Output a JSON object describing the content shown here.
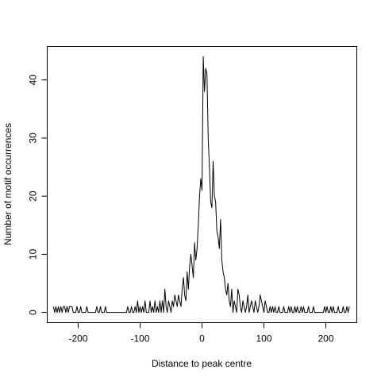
{
  "chart_data": {
    "type": "line",
    "title": "",
    "xlabel": "Distance to peak centre",
    "ylabel": "Number of motif occurrences",
    "xlim": [
      -250,
      250
    ],
    "ylim": [
      -1.76,
      45.76
    ],
    "xticks": [
      -200,
      -100,
      0,
      100,
      200
    ],
    "yticks": [
      0,
      10,
      20,
      30,
      40
    ],
    "xtick_labels": [
      "-200",
      "-100",
      "0",
      "100",
      "200"
    ],
    "ytick_labels": [
      "0",
      "10",
      "20",
      "30",
      "40"
    ],
    "grid": false,
    "legend": "none",
    "series": [
      {
        "name": "",
        "color": "#000000",
        "x": [
          -240,
          -238,
          -236,
          -234,
          -232,
          -230,
          -228,
          -226,
          -224,
          -222,
          -220,
          -218,
          -216,
          -214,
          -212,
          -210,
          -208,
          -206,
          -204,
          -202,
          -200,
          -198,
          -196,
          -194,
          -192,
          -190,
          -188,
          -186,
          -184,
          -182,
          -180,
          -178,
          -176,
          -174,
          -172,
          -170,
          -168,
          -166,
          -164,
          -162,
          -160,
          -158,
          -156,
          -154,
          -152,
          -150,
          -148,
          -146,
          -144,
          -142,
          -140,
          -138,
          -136,
          -134,
          -132,
          -130,
          -128,
          -126,
          -124,
          -122,
          -120,
          -118,
          -116,
          -114,
          -112,
          -110,
          -108,
          -106,
          -104,
          -102,
          -100,
          -98,
          -96,
          -94,
          -92,
          -90,
          -88,
          -86,
          -84,
          -82,
          -80,
          -78,
          -76,
          -74,
          -72,
          -70,
          -68,
          -66,
          -64,
          -62,
          -60,
          -58,
          -56,
          -54,
          -52,
          -50,
          -48,
          -46,
          -44,
          -42,
          -40,
          -38,
          -36,
          -34,
          -32,
          -30,
          -28,
          -26,
          -24,
          -22,
          -20,
          -18,
          -16,
          -14,
          -12,
          -10,
          -8,
          -6,
          -4,
          -2,
          0,
          2,
          4,
          6,
          8,
          10,
          12,
          14,
          16,
          18,
          20,
          22,
          24,
          26,
          28,
          30,
          32,
          34,
          36,
          38,
          40,
          42,
          44,
          46,
          48,
          50,
          52,
          54,
          56,
          58,
          60,
          62,
          64,
          66,
          68,
          70,
          72,
          74,
          76,
          78,
          80,
          82,
          84,
          86,
          88,
          90,
          92,
          94,
          96,
          98,
          100,
          102,
          104,
          106,
          108,
          110,
          112,
          114,
          116,
          118,
          120,
          122,
          124,
          126,
          128,
          130,
          132,
          134,
          136,
          138,
          140,
          142,
          144,
          146,
          148,
          150,
          152,
          154,
          156,
          158,
          160,
          162,
          164,
          166,
          168,
          170,
          172,
          174,
          176,
          178,
          180,
          182,
          184,
          186,
          188,
          190,
          192,
          194,
          196,
          198,
          200,
          202,
          204,
          206,
          208,
          210,
          212,
          214,
          216,
          218,
          220,
          222,
          224,
          226,
          228,
          230,
          232,
          234,
          236,
          238
        ],
        "y": [
          1,
          0,
          1,
          0,
          1,
          0,
          1,
          0,
          1,
          1,
          0,
          1,
          0,
          1,
          1,
          1,
          0,
          0,
          0,
          1,
          0,
          0,
          1,
          0,
          0,
          0,
          0,
          1,
          0,
          0,
          0,
          0,
          0,
          0,
          0,
          1,
          0,
          0,
          1,
          0,
          0,
          0,
          1,
          0,
          0,
          0,
          0,
          0,
          0,
          0,
          0,
          0,
          0,
          0,
          0,
          0,
          0,
          0,
          0,
          0,
          1,
          0,
          0,
          1,
          0,
          0,
          1,
          0,
          2,
          0,
          1,
          0,
          1,
          0,
          2,
          0,
          0,
          0,
          2,
          0,
          1,
          0,
          2,
          0,
          1,
          0,
          2,
          0,
          2,
          0,
          4,
          1,
          0,
          2,
          1,
          0,
          2,
          1,
          3,
          2,
          1,
          3,
          2,
          1,
          4,
          6,
          3,
          2,
          7,
          4,
          8,
          10,
          8,
          6,
          12,
          9,
          11,
          15,
          20,
          23,
          21,
          44,
          38,
          42,
          41,
          30,
          25,
          19,
          18,
          26,
          20,
          19,
          14,
          13,
          11,
          16,
          9,
          7,
          6,
          4,
          3,
          5,
          2,
          1,
          4,
          0,
          2,
          1,
          0,
          4,
          3,
          1,
          0,
          2,
          1,
          0,
          1,
          3,
          0,
          1,
          2,
          1,
          0,
          2,
          1,
          0,
          1,
          3,
          2,
          1,
          0,
          2,
          1,
          0,
          0,
          1,
          0,
          1,
          0,
          1,
          0,
          0,
          1,
          0,
          0,
          0,
          1,
          0,
          0,
          0,
          1,
          0,
          1,
          0,
          0,
          1,
          0,
          1,
          0,
          0,
          1,
          0,
          1,
          0,
          0,
          0,
          1,
          0,
          0,
          0,
          1,
          0,
          0,
          0,
          0,
          0,
          0,
          0,
          0,
          1,
          0,
          1,
          0,
          0,
          1,
          0,
          1,
          0,
          0,
          0,
          1,
          0,
          0,
          0,
          1,
          0,
          0,
          1,
          0,
          1
        ]
      }
    ]
  }
}
